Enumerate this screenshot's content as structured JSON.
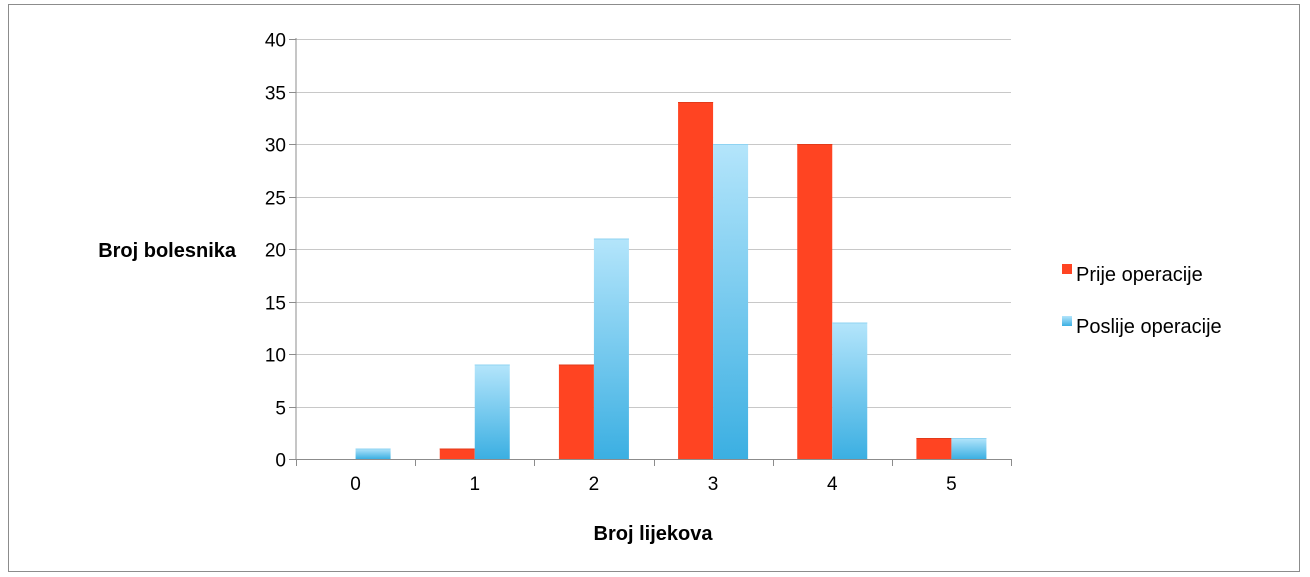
{
  "chart_data": {
    "type": "bar",
    "title": "",
    "xlabel": "Broj lijekova",
    "ylabel": "Broj bolesnika",
    "categories": [
      "0",
      "1",
      "2",
      "3",
      "4",
      "5"
    ],
    "series": [
      {
        "name": "Prije operacije",
        "values": [
          0,
          1,
          9,
          34,
          30,
          2
        ],
        "color": "#ff4422"
      },
      {
        "name": "Poslije operacije",
        "values": [
          1,
          9,
          21,
          30,
          13,
          2
        ],
        "color": "#5cc3ec"
      }
    ],
    "ylim": [
      0,
      40
    ],
    "yticks": [
      0,
      5,
      10,
      15,
      20,
      25,
      30,
      35,
      40
    ],
    "grid": true,
    "legend": "right"
  }
}
